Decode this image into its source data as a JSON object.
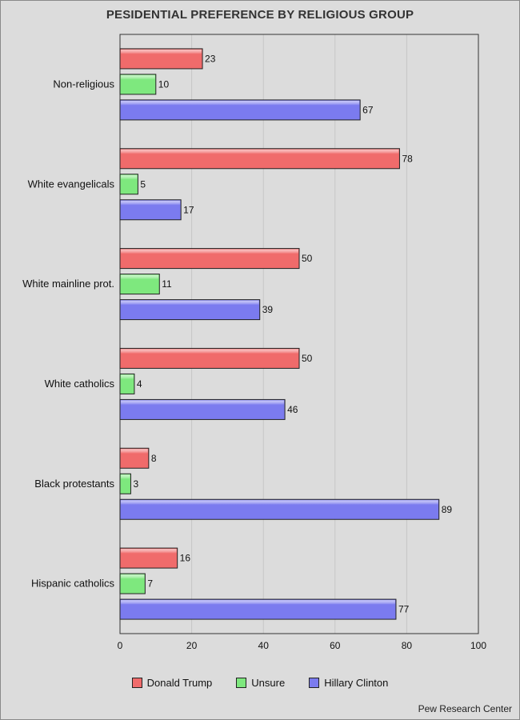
{
  "source": "Pew Research Center",
  "chart_data": {
    "type": "bar",
    "orientation": "horizontal",
    "title": "PESIDENTIAL PREFERENCE BY RELIGIOUS GROUP",
    "xlabel": "",
    "ylabel": "",
    "xlim": [
      0,
      100
    ],
    "xticks": [
      0,
      20,
      40,
      60,
      80,
      100
    ],
    "grid": true,
    "legend_position": "bottom",
    "categories": [
      "Non-religious",
      "White evangelicals",
      "White mainline prot.",
      "White catholics",
      "Black protestants",
      "Hispanic catholics"
    ],
    "series": [
      {
        "name": "Donald Trump",
        "color": "#f06b6b",
        "values": [
          23,
          78,
          50,
          50,
          8,
          16
        ]
      },
      {
        "name": "Unsure",
        "color": "#7ee87e",
        "values": [
          10,
          5,
          11,
          4,
          3,
          7
        ]
      },
      {
        "name": "Hillary Clinton",
        "color": "#7b7bef",
        "values": [
          67,
          17,
          39,
          46,
          89,
          77
        ]
      }
    ]
  }
}
